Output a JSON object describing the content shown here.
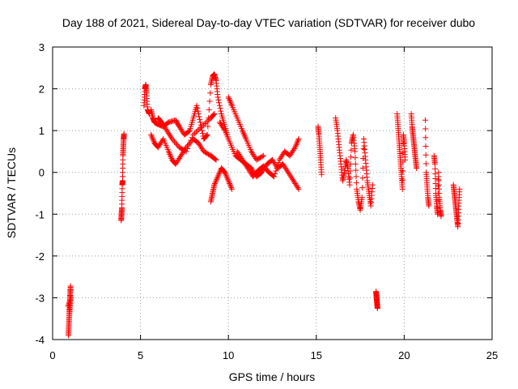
{
  "chart_data": {
    "type": "scatter",
    "title": "Day 188 of 2021, Sidereal Day-to-day VTEC variation (SDTVAR) for receiver dubo",
    "xlabel": "GPS time / hours",
    "ylabel": "SDTVAR / TECUs",
    "xlim": [
      0,
      25
    ],
    "ylim": [
      -4,
      3
    ],
    "xticks": [
      0,
      5,
      10,
      15,
      20,
      25
    ],
    "yticks": [
      -4,
      -3,
      -2,
      -1,
      0,
      1,
      2,
      3
    ],
    "grid": true,
    "marker": "plus",
    "color": "#ff0000",
    "series": [
      {
        "name": "SDTVAR",
        "segments": [
          [
            [
              0.9,
              -3.9
            ],
            [
              0.92,
              -3.7
            ],
            [
              0.94,
              -3.5
            ],
            [
              0.96,
              -3.3
            ],
            [
              0.98,
              -3.1
            ],
            [
              1.0,
              -2.9
            ],
            [
              1.02,
              -2.72
            ],
            [
              0.95,
              -3.4
            ],
            [
              1.05,
              -3.0
            ],
            [
              0.88,
              -3.2
            ]
          ],
          [
            [
              3.9,
              -1.15
            ],
            [
              3.92,
              -1.0
            ],
            [
              3.94,
              -0.85
            ],
            [
              3.96,
              -0.3
            ],
            [
              3.98,
              -0.2
            ],
            [
              4.0,
              0.4
            ],
            [
              4.02,
              0.6
            ],
            [
              4.04,
              0.8
            ],
            [
              4.06,
              0.92
            ]
          ],
          [
            [
              5.2,
              1.6
            ],
            [
              5.25,
              2.0
            ],
            [
              5.3,
              2.1
            ],
            [
              5.35,
              1.9
            ],
            [
              5.4,
              1.5
            ],
            [
              5.5,
              1.4
            ]
          ],
          [
            [
              5.6,
              1.5
            ],
            [
              5.7,
              1.3
            ],
            [
              5.8,
              1.2
            ],
            [
              6.0,
              1.15
            ],
            [
              6.3,
              1.1
            ],
            [
              6.6,
              1.2
            ],
            [
              7.0,
              1.25
            ],
            [
              7.2,
              1.1
            ],
            [
              7.5,
              0.9
            ],
            [
              7.8,
              1.0
            ],
            [
              8.0,
              1.3
            ],
            [
              8.2,
              1.6
            ],
            [
              8.4,
              1.2
            ],
            [
              8.6,
              0.8
            ],
            [
              8.8,
              0.9
            ],
            [
              9.0,
              2.1
            ],
            [
              9.1,
              2.3
            ],
            [
              9.2,
              2.35
            ],
            [
              9.3,
              2.2
            ],
            [
              9.4,
              1.8
            ],
            [
              9.6,
              1.4
            ],
            [
              9.8,
              1.1
            ],
            [
              10.0,
              0.8
            ]
          ],
          [
            [
              5.6,
              0.9
            ],
            [
              5.8,
              0.7
            ],
            [
              6.0,
              0.6
            ],
            [
              6.3,
              0.8
            ],
            [
              6.6,
              0.5
            ],
            [
              6.8,
              0.3
            ],
            [
              7.0,
              0.2
            ],
            [
              7.3,
              0.4
            ],
            [
              7.6,
              0.6
            ],
            [
              8.0,
              0.8
            ],
            [
              8.3,
              0.7
            ],
            [
              8.6,
              0.5
            ],
            [
              9.0,
              0.4
            ],
            [
              9.3,
              0.3
            ]
          ],
          [
            [
              6.0,
              1.3
            ],
            [
              6.2,
              1.2
            ],
            [
              6.5,
              1.0
            ],
            [
              6.8,
              0.8
            ],
            [
              7.2,
              0.6
            ],
            [
              7.6,
              0.5
            ],
            [
              8.0,
              0.9
            ],
            [
              8.5,
              1.1
            ],
            [
              9.0,
              1.3
            ],
            [
              9.2,
              1.4
            ]
          ],
          [
            [
              9.0,
              -0.7
            ],
            [
              9.1,
              -0.5
            ],
            [
              9.2,
              -0.3
            ],
            [
              9.4,
              -0.1
            ],
            [
              9.6,
              0.1
            ],
            [
              9.8,
              0.0
            ],
            [
              10.0,
              -0.2
            ],
            [
              10.2,
              -0.4
            ]
          ],
          [
            [
              10.0,
              1.8
            ],
            [
              10.2,
              1.6
            ],
            [
              10.5,
              1.3
            ],
            [
              10.8,
              1.0
            ],
            [
              11.0,
              0.8
            ],
            [
              11.3,
              0.5
            ],
            [
              11.6,
              0.3
            ],
            [
              12.0,
              0.4
            ]
          ],
          [
            [
              9.5,
              1.2
            ],
            [
              9.8,
              1.0
            ],
            [
              10.1,
              0.7
            ],
            [
              10.4,
              0.4
            ],
            [
              10.7,
              0.3
            ],
            [
              11.0,
              0.2
            ],
            [
              11.3,
              0.1
            ],
            [
              11.6,
              -0.1
            ],
            [
              11.9,
              0.0
            ],
            [
              12.2,
              0.2
            ],
            [
              12.5,
              0.3
            ],
            [
              12.8,
              0.1
            ],
            [
              13.1,
              0.2
            ],
            [
              13.4,
              0.0
            ],
            [
              13.7,
              -0.2
            ],
            [
              14.0,
              -0.4
            ]
          ],
          [
            [
              10.5,
              0.5
            ],
            [
              10.8,
              0.3
            ],
            [
              11.1,
              0.1
            ],
            [
              11.4,
              -0.1
            ],
            [
              11.7,
              0.05
            ],
            [
              12.0,
              0.15
            ],
            [
              12.3,
              0.0
            ],
            [
              12.6,
              -0.1
            ],
            [
              12.9,
              0.3
            ],
            [
              13.2,
              0.5
            ],
            [
              13.5,
              0.4
            ],
            [
              13.8,
              0.6
            ],
            [
              14.0,
              0.8
            ]
          ],
          [
            [
              15.1,
              1.1
            ],
            [
              15.15,
              0.9
            ],
            [
              15.2,
              0.6
            ],
            [
              15.25,
              0.3
            ],
            [
              15.3,
              -0.05
            ]
          ],
          [
            [
              16.1,
              1.3
            ],
            [
              16.2,
              1.0
            ],
            [
              16.3,
              0.6
            ],
            [
              16.4,
              0.2
            ],
            [
              16.5,
              -0.2
            ],
            [
              16.6,
              0.0
            ],
            [
              16.7,
              0.3
            ],
            [
              16.8,
              0.1
            ],
            [
              16.9,
              -0.3
            ],
            [
              17.0,
              0.7
            ],
            [
              17.1,
              0.9
            ],
            [
              17.2,
              0.5
            ],
            [
              17.3,
              -0.4
            ],
            [
              17.4,
              -0.7
            ],
            [
              17.5,
              -0.9
            ],
            [
              17.6,
              -0.6
            ],
            [
              17.7,
              0.8
            ],
            [
              17.8,
              0.3
            ],
            [
              17.9,
              -0.2
            ],
            [
              18.0,
              -0.5
            ],
            [
              18.1,
              -0.8
            ],
            [
              18.2,
              -0.3
            ]
          ],
          [
            [
              18.4,
              -2.85
            ],
            [
              18.42,
              -2.95
            ],
            [
              18.44,
              -3.05
            ],
            [
              18.46,
              -3.15
            ],
            [
              18.48,
              -3.25
            ]
          ],
          [
            [
              19.6,
              1.4
            ],
            [
              19.65,
              1.1
            ],
            [
              19.7,
              0.8
            ],
            [
              19.75,
              0.5
            ],
            [
              19.8,
              0.2
            ],
            [
              19.85,
              -0.1
            ],
            [
              19.9,
              -0.4
            ],
            [
              19.95,
              0.9
            ],
            [
              20.0,
              0.7
            ],
            [
              20.05,
              0.3
            ]
          ],
          [
            [
              20.4,
              1.4
            ],
            [
              20.45,
              1.1
            ],
            [
              20.5,
              0.9
            ],
            [
              20.55,
              0.7
            ],
            [
              20.6,
              0.5
            ],
            [
              20.65,
              0.3
            ],
            [
              20.7,
              0.1
            ]
          ],
          [
            [
              21.2,
              1.25
            ],
            [
              21.25,
              0.0
            ],
            [
              21.3,
              -0.3
            ],
            [
              21.35,
              -0.6
            ],
            [
              21.4,
              -0.8
            ]
          ],
          [
            [
              21.7,
              0.4
            ],
            [
              21.75,
              0.2
            ],
            [
              21.8,
              -0.5
            ],
            [
              21.85,
              -0.8
            ],
            [
              21.9,
              -1.0
            ],
            [
              21.95,
              0.0
            ],
            [
              22.0,
              -0.6
            ],
            [
              22.05,
              -0.9
            ],
            [
              22.1,
              -1.05
            ]
          ],
          [
            [
              22.8,
              -0.3
            ],
            [
              22.85,
              -0.5
            ],
            [
              22.9,
              -0.7
            ],
            [
              22.95,
              -0.9
            ],
            [
              23.0,
              -1.1
            ],
            [
              23.05,
              -1.3
            ],
            [
              23.1,
              -0.8
            ],
            [
              23.15,
              -0.4
            ]
          ]
        ]
      }
    ]
  }
}
